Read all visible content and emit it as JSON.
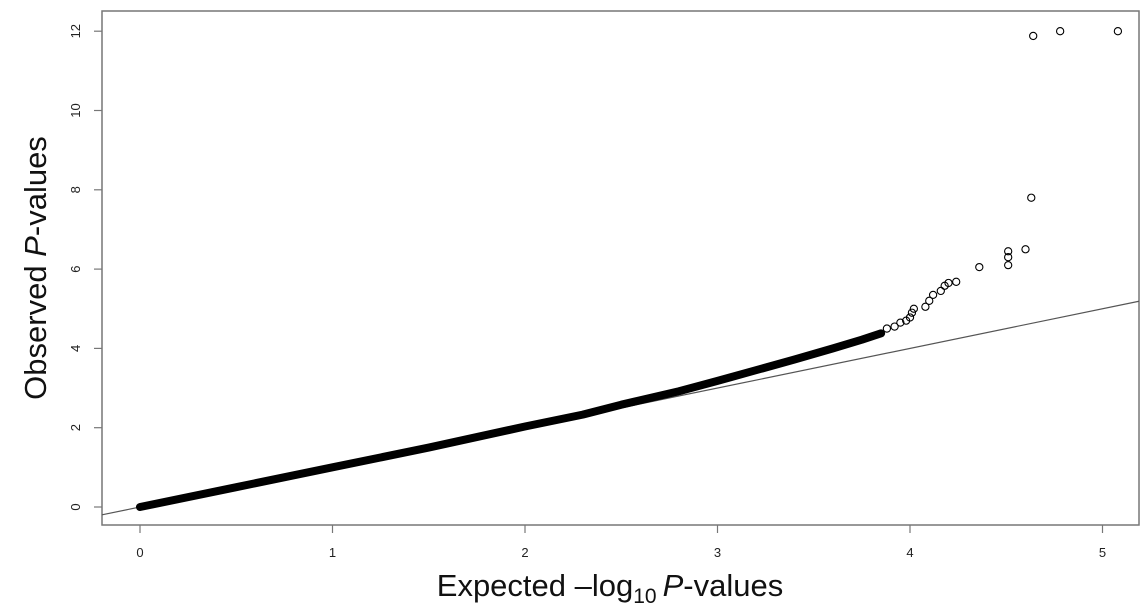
{
  "chart_data": {
    "type": "scatter",
    "title": "",
    "xlabel": {
      "prefix": "Expected –log",
      "subscript": "10",
      "italic": "P",
      "suffix": "-values"
    },
    "ylabel": {
      "prefix": "Observed ",
      "italic": "P",
      "suffix": "-values"
    },
    "xlim": [
      -0.2,
      5.2
    ],
    "ylim": [
      -0.2,
      12.4
    ],
    "xticks": [
      0,
      1,
      2,
      3,
      4,
      5
    ],
    "yticks": [
      0,
      2,
      4,
      6,
      8,
      10,
      12
    ],
    "xtick_labels": [
      "0",
      "1",
      "2",
      "3",
      "4",
      "5"
    ],
    "ytick_labels": [
      "0",
      "2",
      "4",
      "6",
      "8",
      "10",
      "12"
    ],
    "reference_line": {
      "slope": 1,
      "intercept": 0
    },
    "bulk_curve": [
      [
        0,
        0
      ],
      [
        0.5,
        0.5
      ],
      [
        1.0,
        1.0
      ],
      [
        1.5,
        1.5
      ],
      [
        2.0,
        2.03
      ],
      [
        2.3,
        2.33
      ],
      [
        2.5,
        2.58
      ],
      [
        2.8,
        2.92
      ],
      [
        3.0,
        3.18
      ],
      [
        3.2,
        3.45
      ],
      [
        3.4,
        3.72
      ],
      [
        3.6,
        4.0
      ],
      [
        3.75,
        4.22
      ],
      [
        3.85,
        4.38
      ]
    ],
    "points": [
      [
        3.88,
        4.5
      ],
      [
        3.92,
        4.55
      ],
      [
        3.95,
        4.65
      ],
      [
        3.98,
        4.7
      ],
      [
        4.0,
        4.78
      ],
      [
        4.01,
        4.9
      ],
      [
        4.02,
        5.0
      ],
      [
        4.08,
        5.05
      ],
      [
        4.1,
        5.2
      ],
      [
        4.12,
        5.35
      ],
      [
        4.16,
        5.45
      ],
      [
        4.18,
        5.58
      ],
      [
        4.2,
        5.65
      ],
      [
        4.24,
        5.68
      ],
      [
        4.36,
        6.05
      ],
      [
        4.51,
        6.1
      ],
      [
        4.51,
        6.3
      ],
      [
        4.51,
        6.45
      ],
      [
        4.6,
        6.5
      ],
      [
        4.63,
        7.8
      ],
      [
        4.64,
        11.88
      ],
      [
        4.78,
        12.0
      ],
      [
        5.08,
        12.0
      ]
    ],
    "grid": false,
    "legend": false
  },
  "colors": {
    "background": "#ffffff",
    "frame": "#777777",
    "points": "#000000",
    "reference_line": "#555555"
  }
}
